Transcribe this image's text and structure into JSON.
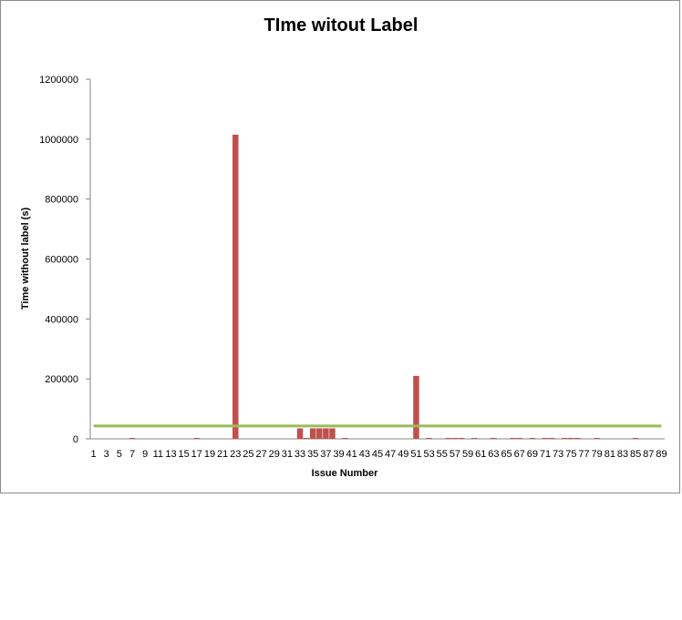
{
  "chart_data": {
    "type": "bar",
    "title": "TIme witout Label",
    "xlabel": "Issue Number",
    "ylabel": "Time without label (s)",
    "ylim": [
      0,
      1200000
    ],
    "yticks": [
      0,
      200000,
      400000,
      600000,
      800000,
      1000000,
      1200000
    ],
    "ytick_labels": [
      "0",
      "200000",
      "400000",
      "600000",
      "800000",
      "1000000",
      "1200000"
    ],
    "x_tick_labels": [
      "1",
      "3",
      "5",
      "7",
      "9",
      "11",
      "13",
      "15",
      "17",
      "19",
      "21",
      "23",
      "25",
      "27",
      "29",
      "31",
      "33",
      "35",
      "37",
      "39",
      "41",
      "43",
      "45",
      "47",
      "49",
      "51",
      "53",
      "55",
      "57",
      "59",
      "61",
      "63",
      "65",
      "67",
      "69",
      "71",
      "73",
      "75",
      "77",
      "79",
      "81",
      "83",
      "85",
      "87",
      "89"
    ],
    "categories": [
      "1",
      "2",
      "3",
      "4",
      "5",
      "6",
      "7",
      "8",
      "9",
      "10",
      "11",
      "12",
      "13",
      "14",
      "15",
      "16",
      "17",
      "18",
      "19",
      "20",
      "21",
      "22",
      "23",
      "24",
      "25",
      "26",
      "27",
      "28",
      "29",
      "30",
      "31",
      "32",
      "33",
      "34",
      "35",
      "36",
      "37",
      "38",
      "39",
      "40",
      "41",
      "42",
      "43",
      "44",
      "45",
      "46",
      "47",
      "48",
      "49",
      "50",
      "51",
      "52",
      "53",
      "54",
      "55",
      "56",
      "57",
      "58",
      "59",
      "60",
      "61",
      "62",
      "63",
      "64",
      "65",
      "66",
      "67",
      "68",
      "69",
      "70",
      "71",
      "72",
      "73",
      "74",
      "75",
      "76",
      "77",
      "78",
      "79",
      "80",
      "81",
      "82",
      "83",
      "84",
      "85",
      "86",
      "87",
      "88",
      "89"
    ],
    "series": [
      {
        "type": "bar",
        "color": "#c0504d",
        "values": [
          0,
          0,
          0,
          0,
          0,
          0,
          3000,
          0,
          0,
          0,
          0,
          0,
          0,
          0,
          0,
          0,
          3000,
          0,
          0,
          0,
          0,
          0,
          1015000,
          0,
          0,
          0,
          0,
          0,
          0,
          0,
          0,
          0,
          35000,
          3000,
          35000,
          35000,
          35000,
          35000,
          0,
          3000,
          0,
          0,
          0,
          0,
          0,
          0,
          0,
          0,
          0,
          0,
          210000,
          0,
          3000,
          0,
          0,
          3000,
          3000,
          3000,
          0,
          3000,
          0,
          0,
          3000,
          0,
          0,
          3000,
          3000,
          0,
          3000,
          0,
          3000,
          3000,
          0,
          3000,
          3000,
          3000,
          0,
          0,
          3000,
          0,
          0,
          0,
          0,
          0,
          3000,
          0,
          0,
          0,
          0
        ]
      },
      {
        "type": "line",
        "color": "#9bbb59",
        "value": 43000
      }
    ],
    "grid": false,
    "legend": "none"
  }
}
